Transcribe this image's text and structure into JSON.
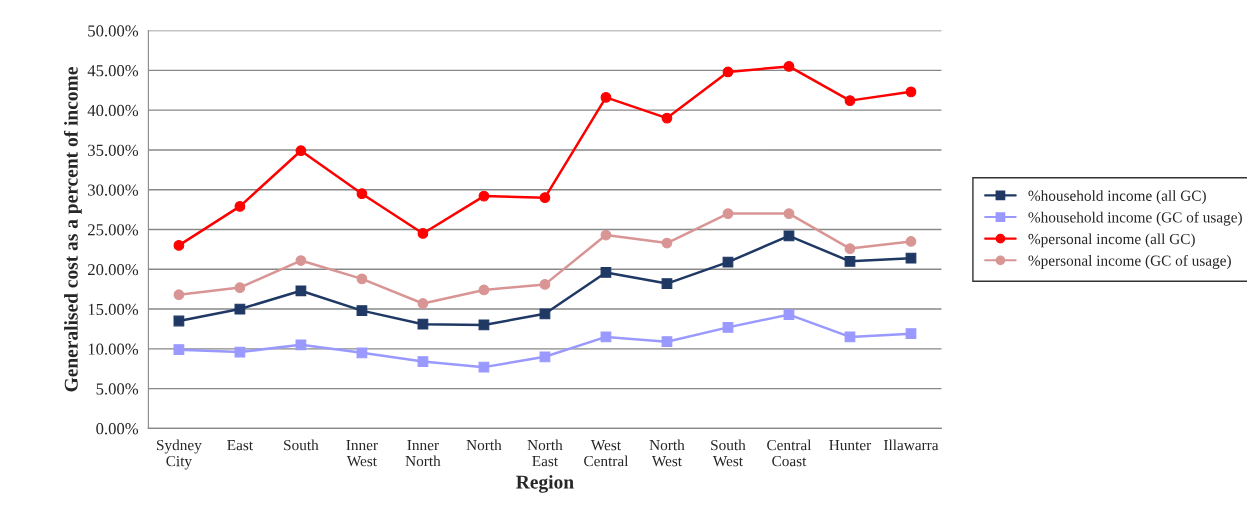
{
  "chart_data": {
    "type": "line",
    "xlabel": "Region",
    "ylabel": "Generalised cost as a percent of income",
    "categories": [
      "Sydney\nCity",
      "East",
      "South",
      "Inner\nWest",
      "Inner\nNorth",
      "North",
      "North\nEast",
      "West\nCentral",
      "North\nWest",
      "South\nWest",
      "Central\nCoast",
      "Hunter",
      "Illawarra"
    ],
    "series": [
      {
        "name": "%household income (all GC)",
        "color": "#1f3864",
        "marker": "square",
        "values": [
          13.5,
          15.0,
          17.3,
          14.8,
          13.1,
          13.0,
          14.4,
          19.6,
          18.2,
          20.9,
          24.2,
          21.0,
          21.4
        ]
      },
      {
        "name": "%household income (GC of usage)",
        "color": "#9999ff",
        "marker": "square",
        "values": [
          9.9,
          9.6,
          10.5,
          9.5,
          8.4,
          7.7,
          9.0,
          11.5,
          10.9,
          12.7,
          14.3,
          11.5,
          11.9
        ]
      },
      {
        "name": "%personal income (all GC)",
        "color": "#ff0000",
        "marker": "circle",
        "values": [
          23.0,
          27.9,
          34.9,
          29.5,
          24.5,
          29.2,
          29.0,
          41.6,
          39.0,
          44.8,
          45.5,
          41.2,
          42.3
        ]
      },
      {
        "name": "%personal income (GC of usage)",
        "color": "#d99594",
        "marker": "circle",
        "values": [
          16.8,
          17.7,
          21.1,
          18.8,
          15.7,
          17.4,
          18.1,
          24.3,
          23.3,
          27.0,
          27.0,
          22.6,
          23.5
        ]
      }
    ],
    "ylim": [
      0,
      50
    ],
    "yticks": [
      {
        "value": 0,
        "label": "0.00%"
      },
      {
        "value": 5,
        "label": "5.00%"
      },
      {
        "value": 10,
        "label": "10.00%"
      },
      {
        "value": 15,
        "label": "15.00%"
      },
      {
        "value": 20,
        "label": "20.00%"
      },
      {
        "value": 25,
        "label": "25.00%"
      },
      {
        "value": 30,
        "label": "30.00%"
      },
      {
        "value": 35,
        "label": "35.00%"
      },
      {
        "value": 40,
        "label": "40.00%"
      },
      {
        "value": 45,
        "label": "45.00%"
      },
      {
        "value": 50,
        "label": "50.00%"
      }
    ],
    "grid": "y",
    "legend": "right",
    "line_style": "solid"
  }
}
